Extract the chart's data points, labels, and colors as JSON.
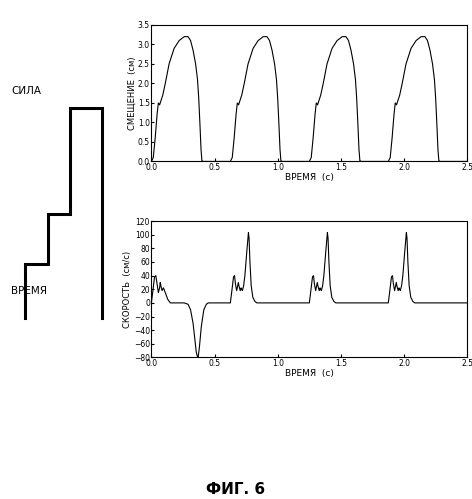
{
  "title": "ФИГ. 6",
  "left_label_force": "СИЛА",
  "left_label_time": "ВРЕМЯ",
  "top_plot": {
    "ylabel": "СМЕЩЕНИЕ  (см)",
    "xlabel": "ВРЕМЯ  (с)",
    "ylim": [
      0,
      3.5
    ],
    "xlim": [
      0,
      2.5
    ],
    "yticks": [
      0,
      0.5,
      1.0,
      1.5,
      2.0,
      2.5,
      3.0,
      3.5
    ],
    "xticks": [
      0,
      0.5,
      1.0,
      1.5,
      2.0,
      2.5
    ]
  },
  "bottom_plot": {
    "ylabel": "СКОРОСТЬ  (см/с)",
    "xlabel": "ВРЕМЯ  (с)",
    "ylim": [
      -80,
      120
    ],
    "xlim": [
      0,
      2.5
    ],
    "yticks": [
      -80,
      -60,
      -40,
      -20,
      0,
      20,
      40,
      60,
      80,
      100,
      120
    ],
    "xticks": [
      0,
      0.5,
      1.0,
      1.5,
      2.0,
      2.5
    ]
  },
  "line_color": "#000000",
  "bg_color": "#ffffff"
}
